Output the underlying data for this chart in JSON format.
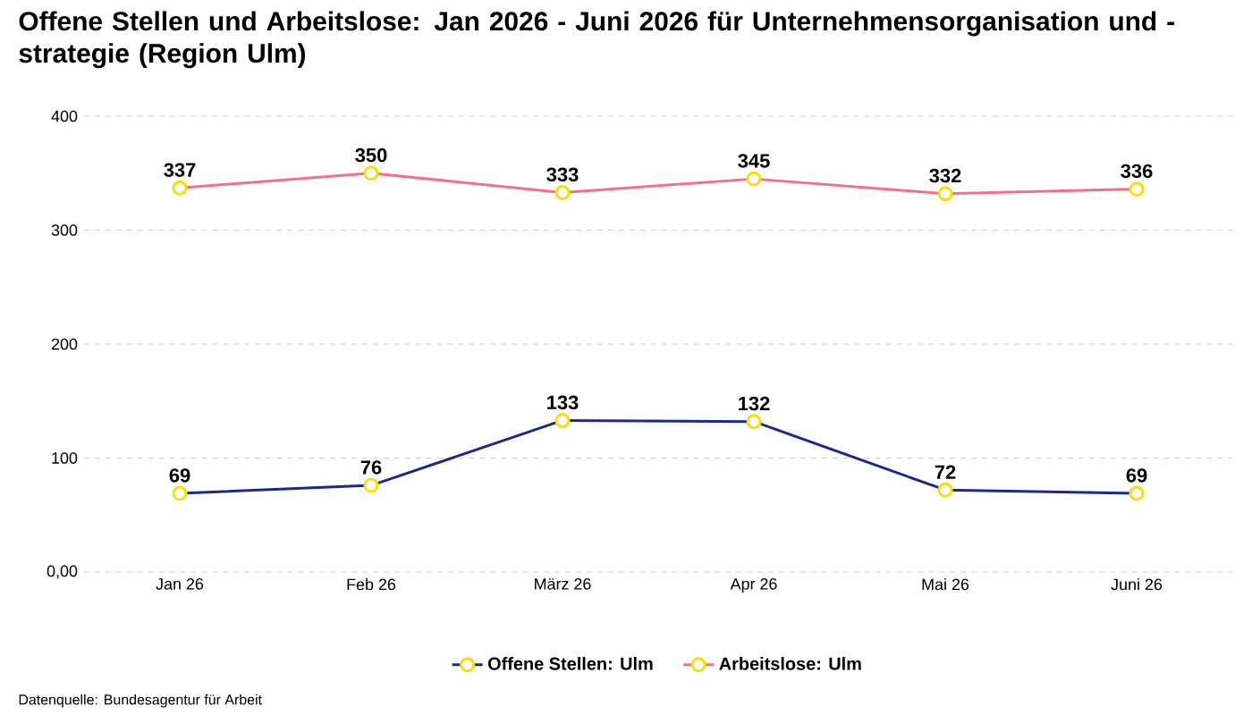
{
  "chart_data": {
    "type": "line",
    "title": "Offene Stellen und Arbeitslose: Jan 2026 - Juni 2026 für Unternehmensorganisation und -strategie (Region Ulm)",
    "categories": [
      "Jan 26",
      "Feb 26",
      "März 26",
      "Apr 26",
      "Mai 26",
      "Juni 26"
    ],
    "series": [
      {
        "name": "Offene Stellen: Ulm",
        "color": "#1a2a8c",
        "values": [
          69,
          76,
          133,
          132,
          72,
          69
        ]
      },
      {
        "name": "Arbeitslose: Ulm",
        "color": "#f2718a",
        "values": [
          337,
          350,
          333,
          345,
          332,
          336
        ]
      }
    ],
    "ylim": [
      0,
      400
    ],
    "yticks": [
      {
        "value": 0,
        "label": "0,00"
      },
      100,
      200,
      300,
      400
    ],
    "grid": "y",
    "legend": "bottom",
    "marker": "circle",
    "data_labels": true,
    "annotations": [
      "Datenquelle: Bundesagentur für Arbeit"
    ]
  }
}
